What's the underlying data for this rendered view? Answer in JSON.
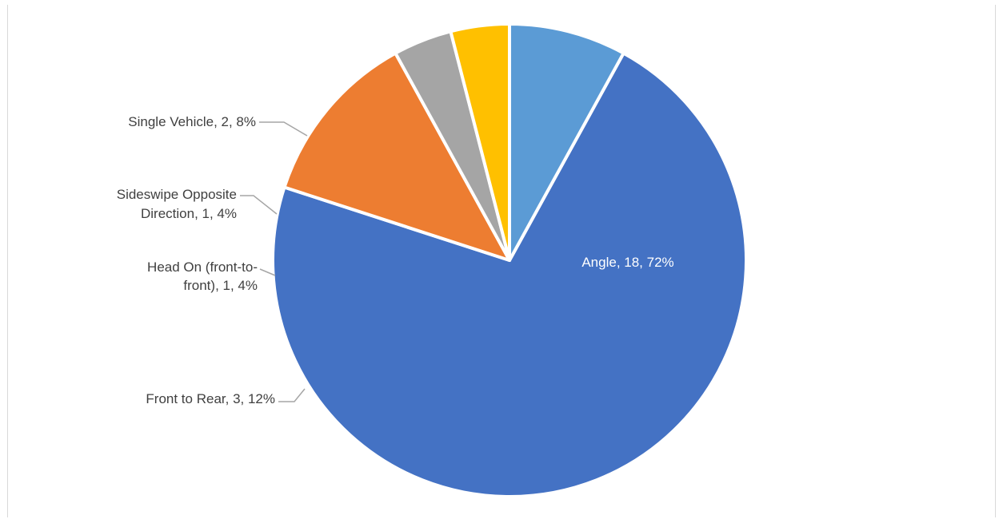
{
  "chart_data": {
    "type": "pie",
    "title": "",
    "slices": [
      {
        "label": "Angle",
        "value": 18,
        "percent": "72%",
        "color": "#4472C4",
        "text": "Angle, 18, 72%"
      },
      {
        "label": "Front to Rear",
        "value": 3,
        "percent": "12%",
        "color": "#ED7D31",
        "text": "Front to Rear, 3, 12%"
      },
      {
        "label": "Head On (front-to-front)",
        "value": 1,
        "percent": "4%",
        "color": "#A5A5A5",
        "text_lines": [
          "Head On (front-to-",
          "front), 1, 4%"
        ]
      },
      {
        "label": "Sideswipe Opposite Direction",
        "value": 1,
        "percent": "4%",
        "color": "#FFC000",
        "text_lines": [
          "Sideswipe Opposite",
          "Direction, 1, 4%"
        ]
      },
      {
        "label": "Single Vehicle",
        "value": 2,
        "percent": "8%",
        "color": "#5B9BD5",
        "text": "Single Vehicle, 2, 8%"
      }
    ],
    "start_angle_deg": 28.8,
    "direction": "clockwise",
    "legend": "none",
    "data_labels": "category, value, percentage"
  }
}
